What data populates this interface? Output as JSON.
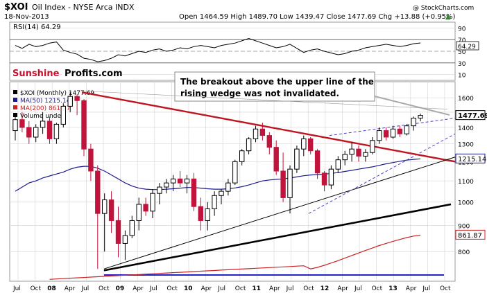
{
  "header": {
    "symbol": "$XOI",
    "name": "Oil Index - NYSE Arca INDX",
    "date": "18-Nov-2013",
    "ohlc": "Open 1464.59  High 1489.70  Low 1439.47  Close 1477.69  Chg +13.88 (+0.95%)",
    "up_arrow": "▲",
    "credit": "@ StockCharts.com"
  },
  "rsi_panel": {
    "label": "RSI(14) 64.29",
    "ticks": [
      "90",
      "70",
      "50",
      "30",
      "10"
    ],
    "current_value": "64.29",
    "values": [
      60,
      55,
      62,
      58,
      60,
      64,
      66,
      52,
      48,
      45,
      38,
      36,
      32,
      34,
      38,
      44,
      42,
      46,
      50,
      48,
      52,
      54,
      50,
      52,
      56,
      54,
      58,
      60,
      58,
      56,
      60,
      62,
      64,
      68,
      72,
      68,
      64,
      60,
      56,
      58,
      62,
      55,
      48,
      52,
      54,
      50,
      47,
      44,
      46,
      50,
      52,
      56,
      58,
      60,
      62,
      60,
      58,
      60,
      63,
      64.29
    ]
  },
  "logo": {
    "part1": "Sunshine",
    "part2": "Profits.com"
  },
  "annotation": "The breakout above the upper line of the rising wedge was not invalidated.",
  "legend": [
    {
      "text": "$XOI (Monthly) 1477.69",
      "color": "#000000"
    },
    {
      "text": "MA(50) 1215.14",
      "color": "#1a1a8c"
    },
    {
      "text": "MA(200) 861.87",
      "color": "#cc2222"
    },
    {
      "text": "Volume undef",
      "color": "#000000"
    }
  ],
  "price_labels": {
    "close": "1477.69",
    "ma50": "1215.14",
    "ma200": "861.87"
  },
  "colors": {
    "up": "#000000",
    "down": "#c0143c",
    "ma50": "#1a1a8c",
    "ma200": "#cc2222",
    "trend_red": "#c0141e",
    "wedge": "#4444cc",
    "grid": "#d8d8d8",
    "logo_red": "#c8102e"
  },
  "chart_data": {
    "type": "candlestick",
    "title": "$XOI Oil Index - NYSE Arca INDX",
    "period": "Monthly",
    "y_ticks": [
      "1600",
      "1500",
      "1400",
      "1300",
      "1200",
      "1100",
      "1000",
      "900",
      "800"
    ],
    "y_scale": "log",
    "x_ticks": [
      "Jul",
      "Oct",
      "08",
      "Apr",
      "Jul",
      "Oct",
      "09",
      "Apr",
      "Jul",
      "Oct",
      "10",
      "Apr",
      "Jul",
      "Oct",
      "11",
      "Apr",
      "Jul",
      "Oct",
      "12",
      "Apr",
      "Jul",
      "Oct",
      "13",
      "Apr",
      "Jul",
      "Oct"
    ],
    "candles": [
      {
        "o": 1380,
        "h": 1490,
        "l": 1320,
        "c": 1450
      },
      {
        "o": 1450,
        "h": 1500,
        "l": 1370,
        "c": 1400
      },
      {
        "o": 1400,
        "h": 1440,
        "l": 1300,
        "c": 1340
      },
      {
        "o": 1340,
        "h": 1420,
        "l": 1310,
        "c": 1400
      },
      {
        "o": 1400,
        "h": 1500,
        "l": 1360,
        "c": 1440
      },
      {
        "o": 1440,
        "h": 1470,
        "l": 1300,
        "c": 1330
      },
      {
        "o": 1330,
        "h": 1430,
        "l": 1300,
        "c": 1420
      },
      {
        "o": 1420,
        "h": 1560,
        "l": 1400,
        "c": 1540
      },
      {
        "o": 1540,
        "h": 1640,
        "l": 1500,
        "c": 1610
      },
      {
        "o": 1610,
        "h": 1625,
        "l": 1480,
        "c": 1580
      },
      {
        "o": 1580,
        "h": 1590,
        "l": 1230,
        "c": 1270
      },
      {
        "o": 1270,
        "h": 1300,
        "l": 1100,
        "c": 1150
      },
      {
        "o": 1150,
        "h": 1180,
        "l": 740,
        "c": 950
      },
      {
        "o": 950,
        "h": 1040,
        "l": 800,
        "c": 1010
      },
      {
        "o": 1010,
        "h": 1050,
        "l": 870,
        "c": 920
      },
      {
        "o": 920,
        "h": 980,
        "l": 780,
        "c": 830
      },
      {
        "o": 830,
        "h": 880,
        "l": 770,
        "c": 860
      },
      {
        "o": 860,
        "h": 940,
        "l": 850,
        "c": 920
      },
      {
        "o": 920,
        "h": 1020,
        "l": 880,
        "c": 990
      },
      {
        "o": 990,
        "h": 1020,
        "l": 940,
        "c": 960
      },
      {
        "o": 960,
        "h": 1060,
        "l": 930,
        "c": 1040
      },
      {
        "o": 1040,
        "h": 1090,
        "l": 990,
        "c": 1070
      },
      {
        "o": 1070,
        "h": 1110,
        "l": 1040,
        "c": 1090
      },
      {
        "o": 1090,
        "h": 1130,
        "l": 1050,
        "c": 1110
      },
      {
        "o": 1110,
        "h": 1150,
        "l": 1070,
        "c": 1090
      },
      {
        "o": 1090,
        "h": 1130,
        "l": 1040,
        "c": 1110
      },
      {
        "o": 1110,
        "h": 1140,
        "l": 960,
        "c": 980
      },
      {
        "o": 980,
        "h": 1020,
        "l": 880,
        "c": 920
      },
      {
        "o": 920,
        "h": 1000,
        "l": 880,
        "c": 970
      },
      {
        "o": 970,
        "h": 1050,
        "l": 940,
        "c": 1030
      },
      {
        "o": 1030,
        "h": 1060,
        "l": 990,
        "c": 1050
      },
      {
        "o": 1050,
        "h": 1110,
        "l": 1030,
        "c": 1090
      },
      {
        "o": 1090,
        "h": 1210,
        "l": 1080,
        "c": 1200
      },
      {
        "o": 1200,
        "h": 1270,
        "l": 1180,
        "c": 1260
      },
      {
        "o": 1260,
        "h": 1340,
        "l": 1240,
        "c": 1330
      },
      {
        "o": 1330,
        "h": 1410,
        "l": 1310,
        "c": 1390
      },
      {
        "o": 1390,
        "h": 1430,
        "l": 1320,
        "c": 1350
      },
      {
        "o": 1350,
        "h": 1370,
        "l": 1240,
        "c": 1280
      },
      {
        "o": 1280,
        "h": 1320,
        "l": 1130,
        "c": 1150
      },
      {
        "o": 1150,
        "h": 1250,
        "l": 1000,
        "c": 1020
      },
      {
        "o": 1020,
        "h": 1180,
        "l": 950,
        "c": 1160
      },
      {
        "o": 1160,
        "h": 1290,
        "l": 1140,
        "c": 1270
      },
      {
        "o": 1270,
        "h": 1350,
        "l": 1230,
        "c": 1330
      },
      {
        "o": 1330,
        "h": 1340,
        "l": 1240,
        "c": 1260
      },
      {
        "o": 1260,
        "h": 1270,
        "l": 1110,
        "c": 1140
      },
      {
        "o": 1140,
        "h": 1150,
        "l": 1050,
        "c": 1080
      },
      {
        "o": 1080,
        "h": 1180,
        "l": 1060,
        "c": 1160
      },
      {
        "o": 1160,
        "h": 1230,
        "l": 1140,
        "c": 1210
      },
      {
        "o": 1210,
        "h": 1260,
        "l": 1180,
        "c": 1240
      },
      {
        "o": 1240,
        "h": 1310,
        "l": 1200,
        "c": 1270
      },
      {
        "o": 1270,
        "h": 1290,
        "l": 1200,
        "c": 1230
      },
      {
        "o": 1230,
        "h": 1270,
        "l": 1200,
        "c": 1250
      },
      {
        "o": 1250,
        "h": 1340,
        "l": 1240,
        "c": 1320
      },
      {
        "o": 1320,
        "h": 1400,
        "l": 1300,
        "c": 1380
      },
      {
        "o": 1380,
        "h": 1400,
        "l": 1320,
        "c": 1340
      },
      {
        "o": 1340,
        "h": 1410,
        "l": 1330,
        "c": 1390
      },
      {
        "o": 1390,
        "h": 1410,
        "l": 1340,
        "c": 1360
      },
      {
        "o": 1360,
        "h": 1420,
        "l": 1350,
        "c": 1410
      },
      {
        "o": 1410,
        "h": 1470,
        "l": 1380,
        "c": 1460
      },
      {
        "o": 1460,
        "h": 1490,
        "l": 1439,
        "c": 1477.69
      }
    ],
    "ma50": [
      1050,
      1070,
      1090,
      1100,
      1115,
      1125,
      1135,
      1145,
      1160,
      1170,
      1175,
      1175,
      1165,
      1150,
      1130,
      1110,
      1090,
      1075,
      1065,
      1060,
      1058,
      1058,
      1060,
      1062,
      1065,
      1068,
      1068,
      1065,
      1062,
      1060,
      1060,
      1062,
      1066,
      1072,
      1080,
      1090,
      1100,
      1105,
      1108,
      1110,
      1115,
      1120,
      1126,
      1130,
      1132,
      1134,
      1138,
      1142,
      1148,
      1154,
      1160,
      1166,
      1172,
      1180,
      1188,
      1195,
      1202,
      1208,
      1212,
      1215.14
    ],
    "ma200_segment": [
      740,
      745,
      752,
      760,
      768,
      777,
      786,
      795,
      804,
      813,
      822,
      830,
      838,
      845,
      852,
      858,
      861.87
    ]
  }
}
